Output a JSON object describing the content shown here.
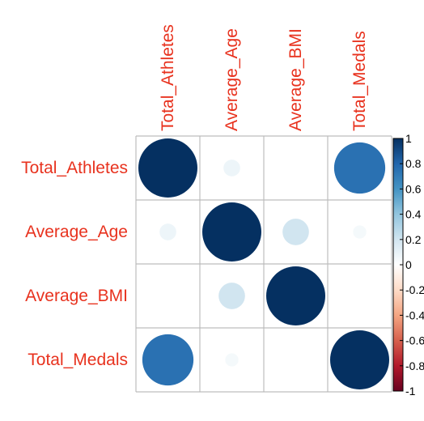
{
  "chart_data": {
    "type": "heatmap",
    "variables": [
      "Total_Athletes",
      "Average_Age",
      "Average_BMI",
      "Total_Medals"
    ],
    "matrix": [
      [
        1.0,
        0.08,
        0.0,
        0.75
      ],
      [
        0.08,
        1.0,
        0.2,
        0.05
      ],
      [
        0.0,
        0.2,
        1.0,
        0.0
      ],
      [
        0.75,
        0.05,
        0.0,
        1.0
      ]
    ],
    "colorbar": {
      "min": -1,
      "max": 1,
      "tick_values": [
        1,
        0.8,
        0.6,
        0.4,
        0.2,
        0,
        -0.2,
        -0.4,
        -0.6,
        -0.8,
        -1
      ],
      "tick_labels": [
        "1",
        "0.8",
        "0.6",
        "0.4",
        "0.2",
        "0",
        "-0.2",
        "-0.4",
        "-0.6",
        "-0.8",
        "-1"
      ],
      "colors": [
        "#67001f",
        "#b2182b",
        "#d6604d",
        "#f4a582",
        "#fddbc7",
        "#ffffff",
        "#d1e5f0",
        "#92c5de",
        "#4393c3",
        "#2166ac",
        "#053061"
      ]
    },
    "label_color": "#e8321e",
    "grid_color": "#bdbdbd",
    "legend_position": "right"
  }
}
